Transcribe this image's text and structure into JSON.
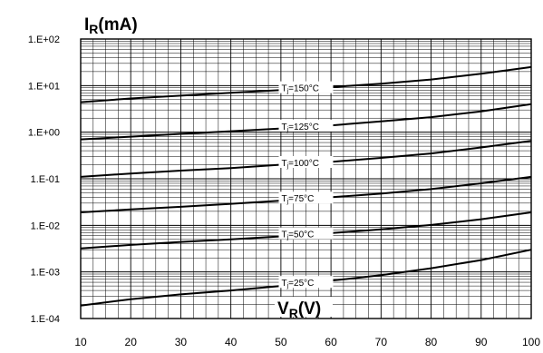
{
  "chart_data": {
    "type": "line",
    "title": "",
    "ylabel": "I",
    "ylabel_sub": "R",
    "ylabel_unit": "(mA)",
    "xlabel": "V",
    "xlabel_sub": "R",
    "xlabel_unit": "(V)",
    "xlim": [
      10,
      100
    ],
    "ylim": [
      0.0001,
      100
    ],
    "yscale": "log",
    "grid": true,
    "x_ticks": [
      "10",
      "20",
      "30",
      "40",
      "50",
      "60",
      "70",
      "80",
      "90",
      "100"
    ],
    "y_ticks": [
      "1.E-04",
      "1.E-03",
      "1.E-02",
      "1.E-01",
      "1.E+00",
      "1.E+01",
      "1.E+02"
    ],
    "series": [
      {
        "name": "T=150°C",
        "label_prefix": "T",
        "label_sub": "j",
        "label_rest": "=150°C",
        "x": [
          10,
          20,
          30,
          40,
          50,
          60,
          70,
          80,
          90,
          100
        ],
        "y": [
          4.4,
          5.3,
          6.1,
          7.0,
          8.0,
          9.3,
          11.0,
          13.5,
          18.0,
          25.0
        ]
      },
      {
        "name": "T=125°C",
        "label_prefix": "T",
        "label_sub": "j",
        "label_rest": "=125°C",
        "x": [
          10,
          20,
          30,
          40,
          50,
          60,
          70,
          80,
          90,
          100
        ],
        "y": [
          0.7,
          0.8,
          0.92,
          1.05,
          1.2,
          1.4,
          1.7,
          2.1,
          2.8,
          4.0
        ]
      },
      {
        "name": "T=100°C",
        "label_prefix": "T",
        "label_sub": "j",
        "label_rest": "=100°C",
        "x": [
          10,
          20,
          30,
          40,
          50,
          60,
          70,
          80,
          90,
          100
        ],
        "y": [
          0.11,
          0.13,
          0.15,
          0.17,
          0.2,
          0.23,
          0.28,
          0.35,
          0.47,
          0.65
        ]
      },
      {
        "name": "T=75°C",
        "label_prefix": "T",
        "label_sub": "j",
        "label_rest": "=75°C",
        "x": [
          10,
          20,
          30,
          40,
          50,
          60,
          70,
          80,
          90,
          100
        ],
        "y": [
          0.019,
          0.022,
          0.025,
          0.029,
          0.034,
          0.04,
          0.048,
          0.06,
          0.08,
          0.11
        ]
      },
      {
        "name": "T=50°C",
        "label_prefix": "T",
        "label_sub": "j",
        "label_rest": "=50°C",
        "x": [
          10,
          20,
          30,
          40,
          50,
          60,
          70,
          80,
          90,
          100
        ],
        "y": [
          0.0032,
          0.0038,
          0.0044,
          0.005,
          0.0058,
          0.0068,
          0.0082,
          0.0102,
          0.0135,
          0.019
        ]
      },
      {
        "name": "T=25°C",
        "label_prefix": "T",
        "label_sub": "j",
        "label_rest": "=25°C",
        "x": [
          10,
          20,
          30,
          40,
          50,
          60,
          70,
          80,
          90,
          100
        ],
        "y": [
          0.00019,
          0.00026,
          0.00033,
          0.0004,
          0.0005,
          0.00065,
          0.00085,
          0.0012,
          0.0018,
          0.003
        ]
      }
    ]
  }
}
